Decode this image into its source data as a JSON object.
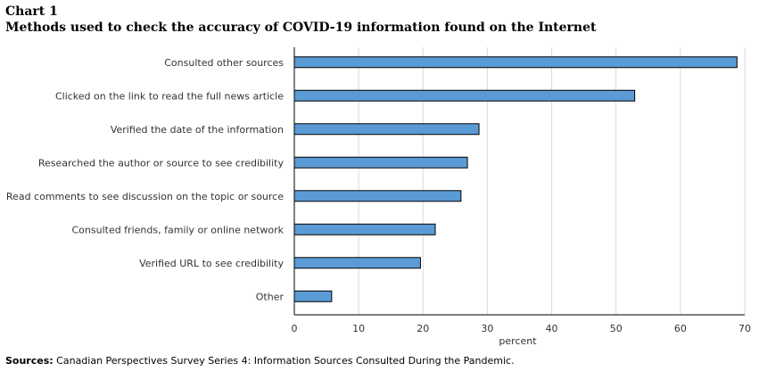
{
  "chart_title": "Chart 1",
  "chart_subtitle": "Methods used to check the accuracy of COVID-19 information found on the Internet",
  "source_label": "Sources:",
  "source_text": "Canadian Perspectives Survey Series 4: Information Sources Consulted During the Pandemic.",
  "chart_data": {
    "type": "bar",
    "orientation": "horizontal",
    "categories": [
      "Consulted other sources",
      "Clicked on the link to read the full news article",
      "Verified the date of the information",
      "Researched the author or source to see credibility",
      "Read comments to see discussion on the topic or source",
      "Consulted friends, family or online network",
      "Verified URL to see credibility",
      "Other"
    ],
    "values": [
      68.8,
      52.9,
      28.7,
      26.9,
      25.9,
      21.9,
      19.6,
      5.8
    ],
    "xlabel": "percent",
    "xlim": [
      0,
      70
    ],
    "xticks": [
      0,
      10,
      20,
      30,
      40,
      50,
      60,
      70
    ],
    "grid": true,
    "bar_color": "#5b9bd5"
  }
}
